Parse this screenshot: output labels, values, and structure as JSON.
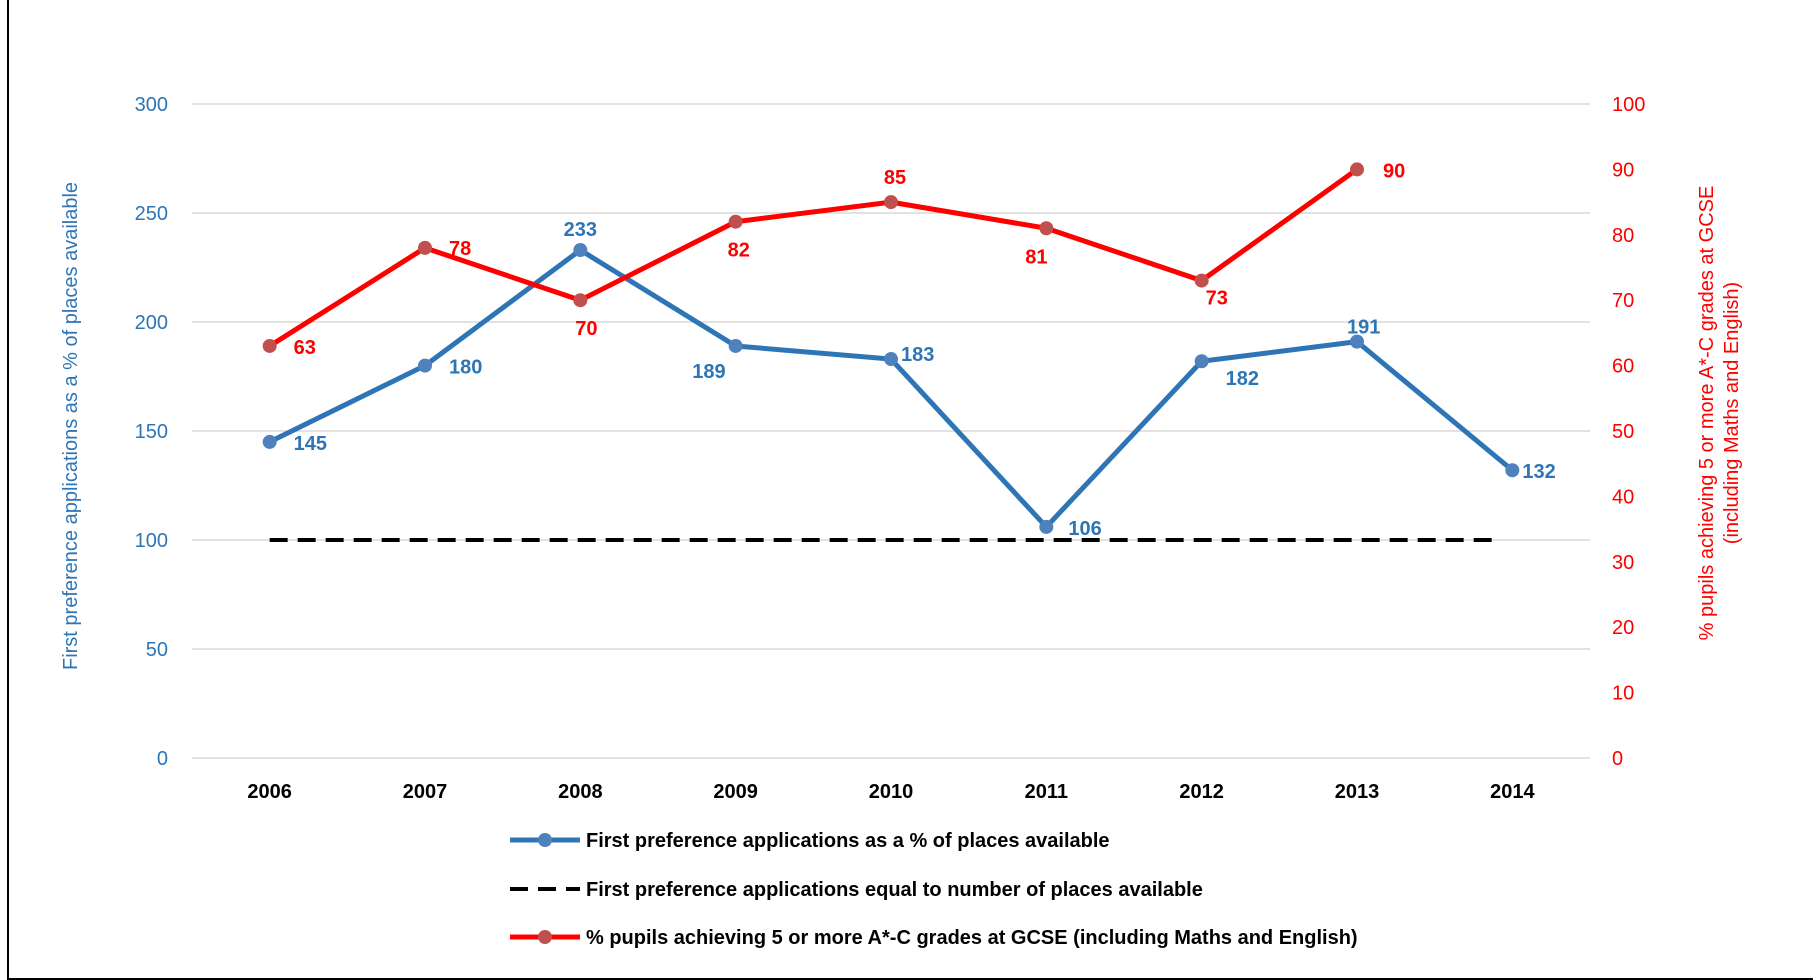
{
  "colors": {
    "series1_line": "#2e75b6",
    "series1_marker": "#4f81bd",
    "series2_line": "#000000",
    "series3_line": "#ff0000",
    "series3_marker": "#c0504d",
    "grid": "#d9d9d9"
  },
  "chart_data": {
    "type": "line",
    "title": "",
    "categories": [
      "2006",
      "2007",
      "2008",
      "2009",
      "2010",
      "2011",
      "2012",
      "2013",
      "2014"
    ],
    "y_left": {
      "label": "First preference applications as a % of places available",
      "range": [
        0,
        300
      ],
      "ticks": [
        "0",
        "50",
        "100",
        "150",
        "200",
        "250",
        "300"
      ]
    },
    "y_right": {
      "label_line1": "% pupils achieving 5 or more A*-C grades at GCSE",
      "label_line2": "(including Maths and English)",
      "range": [
        0,
        100
      ],
      "ticks": [
        "0",
        "10",
        "20",
        "30",
        "40",
        "50",
        "60",
        "70",
        "80",
        "90",
        "100"
      ]
    },
    "grid": true,
    "legend_position": "bottom",
    "series": [
      {
        "name": "First preference applications as a % of places available",
        "axis": "left",
        "style": "solid-marker",
        "values": [
          145,
          180,
          233,
          189,
          183,
          106,
          182,
          191,
          132
        ]
      },
      {
        "name": "First preference applications equal to number of places available",
        "axis": "left",
        "style": "dashed",
        "values": [
          100,
          100,
          100,
          100,
          100,
          100,
          100,
          100,
          100
        ]
      },
      {
        "name": "% pupils achieving 5 or more A*-C grades at GCSE (including Maths and English)",
        "axis": "right",
        "style": "solid-marker",
        "values": [
          63,
          78,
          70,
          82,
          85,
          81,
          73,
          90,
          null
        ]
      }
    ]
  }
}
